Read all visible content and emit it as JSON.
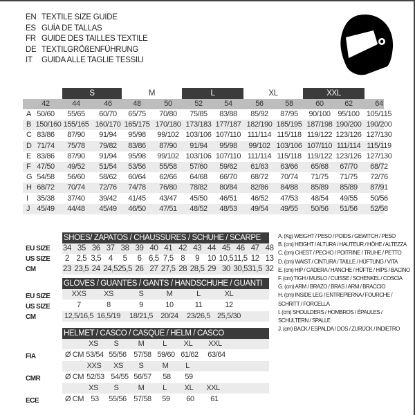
{
  "titles": [
    {
      "lang": "EN",
      "text": "TEXTILE SIZE GUIDE"
    },
    {
      "lang": "ES",
      "text": "GUÍA DE TALLAS"
    },
    {
      "lang": "FR",
      "text": "GUIDE DES TAILLES TEXTILE"
    },
    {
      "lang": "DE",
      "text": "TEXTILGRÖßENFÜHRUNG"
    },
    {
      "lang": "IT",
      "text": "GUIDA ALLE TAGLIE TESSILI"
    }
  ],
  "icon": "helmet-icon",
  "textile": {
    "size_bands": [
      "S",
      "M",
      "L",
      "XL",
      "XXL"
    ],
    "sizes": [
      "42",
      "44",
      "46",
      "48",
      "50",
      "52",
      "54",
      "56",
      "58",
      "60",
      "62",
      "64"
    ],
    "rows": [
      {
        "label": "A",
        "values": [
          "50/60",
          "55/65",
          "60/70",
          "65/75",
          "70/80",
          "75/85",
          "83/88",
          "85/92",
          "87/95",
          "90/100",
          "95/100",
          "105/115"
        ]
      },
      {
        "label": "B",
        "values": [
          "150/160",
          "155/165",
          "160/170",
          "165/175",
          "170/180",
          "173/183",
          "177/187",
          "182/190",
          "185/195",
          "187/198",
          "190/200",
          "190/200"
        ]
      },
      {
        "label": "C",
        "values": [
          "83/86",
          "87/90",
          "91/94",
          "95/98",
          "99/102",
          "103/106",
          "107/110",
          "111/114",
          "115/118",
          "119/122",
          "123/126",
          "127/130"
        ]
      },
      {
        "label": "D",
        "values": [
          "71/74",
          "75/78",
          "79/82",
          "83/86",
          "87/90",
          "91/94",
          "95/98",
          "99/102",
          "103/106",
          "107/110",
          "111/114",
          "115/119"
        ]
      },
      {
        "label": "E",
        "values": [
          "83/86",
          "87/90",
          "91/94",
          "95/98",
          "99/102",
          "103/106",
          "107/110",
          "111/114",
          "115/118",
          "119/122",
          "123/126",
          "127/130"
        ]
      },
      {
        "label": "F",
        "values": [
          "47/50",
          "49/52",
          "51/54",
          "53/56",
          "55/58",
          "57/60",
          "59/62",
          "61/63",
          "63/66",
          "65/68",
          "67/70",
          "68/72"
        ]
      },
      {
        "label": "G",
        "values": [
          "54/58",
          "56/60",
          "58/62",
          "60/64",
          "62/66",
          "64/68",
          "66/70",
          "68/72",
          "70/74",
          "71/75",
          "71/75",
          "72/76"
        ]
      },
      {
        "label": "H",
        "values": [
          "68/72",
          "70/74",
          "72/76",
          "74/78",
          "76/80",
          "78/82",
          "80/84",
          "82/86",
          "84/88",
          "85/89",
          "85/89",
          "87/91"
        ]
      },
      {
        "label": "I",
        "values": [
          "35/38",
          "37/40",
          "39/42",
          "41/45",
          "43/47",
          "45/50",
          "46/51",
          "46/52",
          "47/53",
          "48/54",
          "49/55",
          "50/56"
        ]
      },
      {
        "label": "J",
        "values": [
          "45/49",
          "44/48",
          "45/49",
          "46/50",
          "47/51",
          "48/52",
          "48/53",
          "49/54",
          "49/55",
          "50/56",
          "51/56",
          "52/58"
        ]
      }
    ]
  },
  "shoes": {
    "title": "SHOES/ ZAPATOS / CHAUSSURES / SCHUHE / SCARPE",
    "rows": [
      {
        "label": "EU SIZE",
        "values": [
          "34",
          "35",
          "36",
          "37",
          "38",
          "39",
          "40",
          "41",
          "42",
          "43",
          "44",
          "45",
          "46",
          "47",
          "48"
        ]
      },
      {
        "label": "US SIZE",
        "values": [
          "2",
          "2,5",
          "3,5",
          "4",
          "5",
          "6",
          "6,5",
          "7,5",
          "8",
          "9",
          "10",
          "10,5",
          "11,5",
          "12",
          "13"
        ]
      },
      {
        "label": "CM",
        "values": [
          "23",
          "23,5",
          "24",
          "24,5",
          "25,5",
          "26",
          "27",
          "27,5",
          "28",
          "28,5",
          "29",
          "30",
          "30,5",
          "31,5",
          "32"
        ]
      }
    ]
  },
  "gloves": {
    "title": "GLOVES / GUANTES / GANTS / HANDSCHUHE / GUANTI",
    "rows": [
      {
        "label": "EU SIZE",
        "values": [
          "XXS",
          "XS",
          "S",
          "M",
          "L",
          "XL"
        ]
      },
      {
        "label": "US SIZE",
        "values": [
          "7",
          "8",
          "9",
          "10",
          "11",
          "12"
        ]
      },
      {
        "label": "CM",
        "values": [
          "12,5/16,5",
          "16,5/19",
          "18/21,5",
          "20/24",
          "23/26,5",
          "25,5/30"
        ]
      }
    ]
  },
  "helmet": {
    "title": "HELMET / CASCO / CASQUE / HELM / CASCO",
    "groups": [
      {
        "label": "FIA",
        "unit": "Ø CM",
        "sizes": [
          "XS",
          "S",
          "M",
          "L",
          "XL",
          "XXL"
        ],
        "values": [
          "53/54",
          "55/56",
          "57/58",
          "59/60",
          "61/62",
          "63/64"
        ]
      },
      {
        "label": "CMR",
        "unit": "Ø CM",
        "sizes": [
          "XXS",
          "XS",
          "S",
          "M",
          "L"
        ],
        "values": [
          "52/53",
          "54/55",
          "56/57",
          "58",
          "59"
        ]
      },
      {
        "label": "ECE",
        "unit": "Ø CM",
        "sizes": [
          "XS",
          "S",
          "M",
          "L",
          "XL",
          "XXL"
        ],
        "values": [
          "53",
          "55/56",
          "57/58",
          "59",
          "60",
          "61"
        ]
      }
    ]
  },
  "legend": [
    "A. (Kg) WEIGHT / PESO / POIDS / GEWITCH / PESO",
    "B. (cm) HEIGHT / ALTURA / HAUTEUR / HÖHE / ALTEZZA",
    "C. (cm) CHEST / PECHO / POITRINE / TRUHE / PETTO",
    "D. (cm) WAIST / CINTURA / TAILLE / HÜFTUNG / VITA",
    "E. (cm) HIP / CADERA / HANCHE / HÜFTE / HIPS /  BACINO",
    "F. (cm) TIGH / MUSLO / CUISSE / SCHENKEL / COSCIA",
    "G. (cm) ARM  / BRAZO / BRAS / ARM / BRACCIO",
    "H. (cm) INSIDE LEG / ENTREPIERNA / FOURCHE /",
    "SCHRITT / FORCELLA",
    "I.  (cm) SHOULDERS / HOMBROS / ÉPAULES /",
    "SCHULTERN / SPALLE",
    "J. (cm) BACK / ESPALDA / DOS / ZURÜCK / INDIETRO"
  ]
}
